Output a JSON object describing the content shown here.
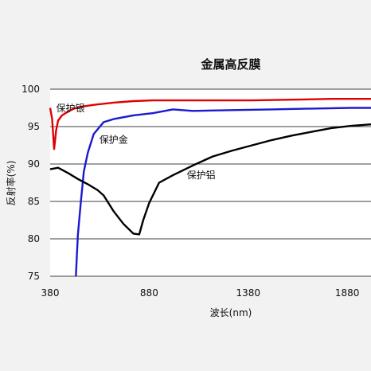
{
  "chart_data": {
    "type": "line",
    "title": "金属高反膜",
    "xlabel": "波长(nm)",
    "ylabel": "反射率(%)",
    "xlim": [
      380,
      2000
    ],
    "ylim": [
      75,
      100
    ],
    "x_ticks": [
      "380",
      "880",
      "1380",
      "1880"
    ],
    "y_ticks": [
      "100",
      "95",
      "90",
      "85",
      "80",
      "75"
    ],
    "grid": "horizontal",
    "colors": {
      "silver": "#e00000",
      "gold": "#1a1ad0",
      "aluminum": "#000000"
    },
    "series": [
      {
        "name": "保护银",
        "color": "#e00000",
        "x": [
          380,
          390,
          400,
          410,
          420,
          440,
          470,
          500,
          550,
          600,
          700,
          800,
          900,
          1000,
          1200,
          1400,
          1600,
          1800,
          2000
        ],
        "y": [
          97.5,
          96.0,
          92.0,
          94.5,
          95.8,
          96.5,
          97.0,
          97.4,
          97.7,
          97.9,
          98.2,
          98.4,
          98.5,
          98.5,
          98.5,
          98.5,
          98.6,
          98.7,
          98.7
        ]
      },
      {
        "name": "保护金",
        "color": "#1a1ad0",
        "x": [
          510,
          520,
          535,
          550,
          570,
          600,
          650,
          700,
          800,
          900,
          1000,
          1100,
          1300,
          1500,
          1700,
          1900,
          2000
        ],
        "y": [
          75.0,
          80.5,
          85.0,
          89.0,
          91.5,
          94.0,
          95.6,
          96.0,
          96.5,
          96.8,
          97.3,
          97.1,
          97.2,
          97.3,
          97.4,
          97.5,
          97.5
        ]
      },
      {
        "name": "保护铝",
        "color": "#000000",
        "x": [
          380,
          420,
          470,
          520,
          570,
          620,
          650,
          700,
          750,
          800,
          830,
          850,
          880,
          930,
          1000,
          1100,
          1200,
          1300,
          1400,
          1500,
          1600,
          1700,
          1800,
          1900,
          2000
        ],
        "y": [
          89.3,
          89.5,
          88.8,
          88.0,
          87.3,
          86.5,
          85.8,
          83.7,
          82.0,
          80.7,
          80.6,
          82.5,
          84.8,
          87.5,
          88.5,
          89.8,
          91.0,
          91.8,
          92.5,
          93.2,
          93.8,
          94.3,
          94.8,
          95.1,
          95.3
        ]
      }
    ],
    "annotations": [
      {
        "text": "保护银",
        "x": 410,
        "y": 97.0
      },
      {
        "text": "保护金",
        "x": 628,
        "y": 92.8
      },
      {
        "text": "保护铝",
        "x": 1070,
        "y": 88.1
      }
    ]
  }
}
